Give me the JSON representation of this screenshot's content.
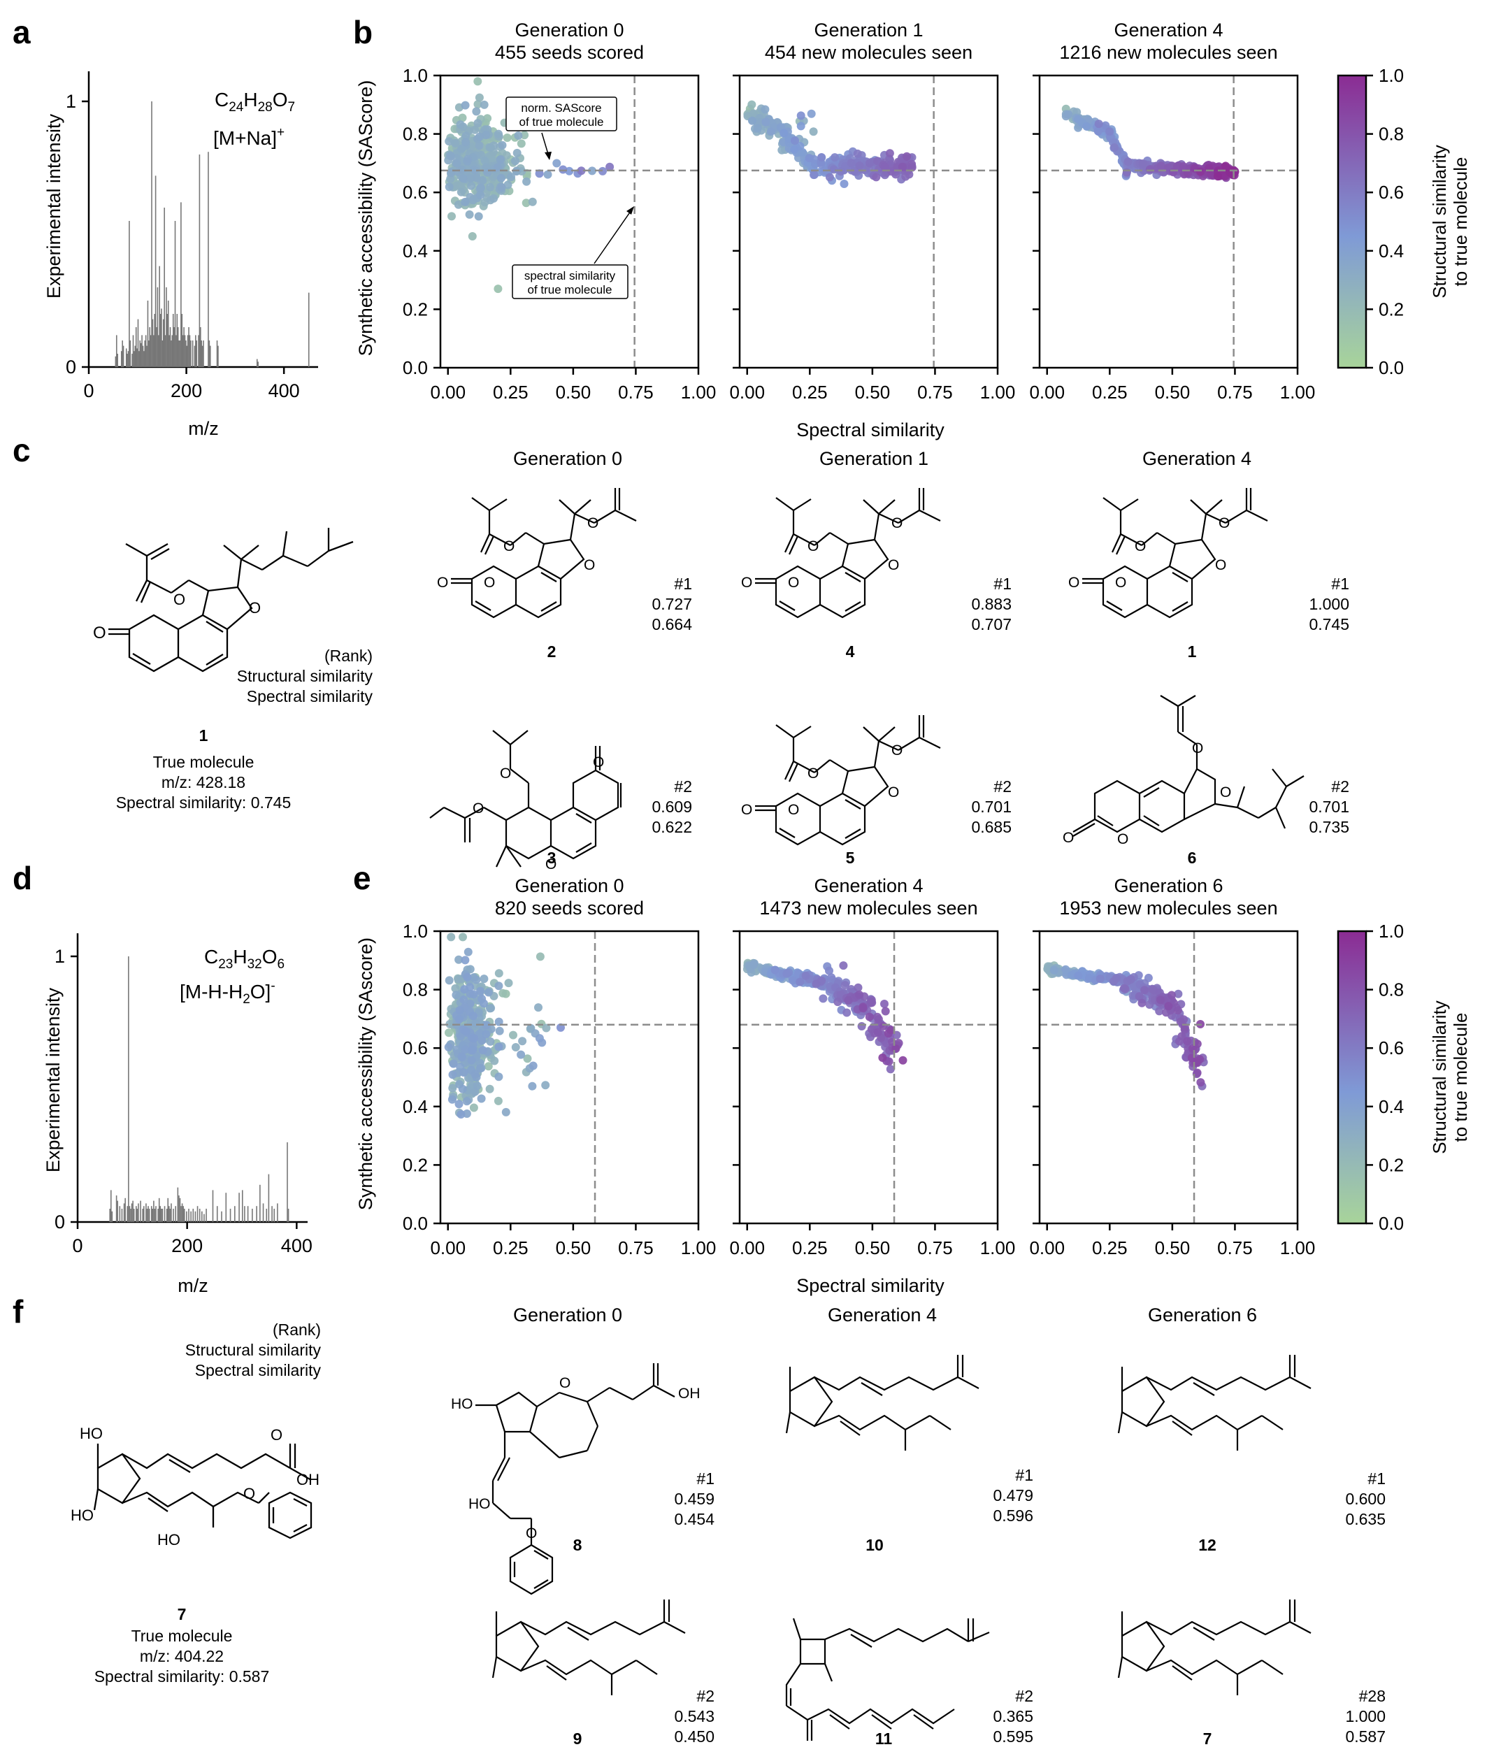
{
  "panel_letters": {
    "a": "a",
    "b": "b",
    "c": "c",
    "d": "d",
    "e": "e",
    "f": "f"
  },
  "colors": {
    "low": "#a8d49a",
    "mid": "#7f9ad6",
    "high": "#8b2c93",
    "dash": "#8c8c8c",
    "line": "#000000",
    "spectrum": "#777777"
  },
  "colorbar": {
    "label": "Structural similarity to true molecule",
    "label_line1": "Structural similarity",
    "label_line2": "to true molecule",
    "ticks": [
      "0.0",
      "0.2",
      "0.4",
      "0.6",
      "0.8",
      "1.0"
    ]
  },
  "chart_data": [
    {
      "id": "a",
      "type": "spectrum",
      "ylabel": "Experimental intensity",
      "xlabel": "m/z",
      "formula": "C24H28O7",
      "adduct": "[M+Na]+",
      "xlim": [
        0,
        470
      ],
      "ylim": [
        0,
        1.1
      ],
      "xticks": [
        "0",
        "200",
        "400"
      ],
      "yticks": [
        "0",
        "1"
      ],
      "peaks": [
        [
          55,
          0.04
        ],
        [
          57,
          0.12
        ],
        [
          59,
          0.05
        ],
        [
          67,
          0.06
        ],
        [
          69,
          0.1
        ],
        [
          71,
          0.08
        ],
        [
          77,
          0.07
        ],
        [
          79,
          0.05
        ],
        [
          81,
          0.06
        ],
        [
          83,
          0.55
        ],
        [
          85,
          0.1
        ],
        [
          89,
          0.05
        ],
        [
          91,
          0.12
        ],
        [
          93,
          0.06
        ],
        [
          95,
          0.08
        ],
        [
          97,
          0.15
        ],
        [
          99,
          0.07
        ],
        [
          101,
          0.18
        ],
        [
          103,
          0.06
        ],
        [
          105,
          0.1
        ],
        [
          107,
          0.09
        ],
        [
          109,
          0.12
        ],
        [
          111,
          0.08
        ],
        [
          113,
          0.06
        ],
        [
          115,
          0.1
        ],
        [
          117,
          0.12
        ],
        [
          119,
          0.08
        ],
        [
          121,
          0.25
        ],
        [
          123,
          0.1
        ],
        [
          125,
          0.15
        ],
        [
          127,
          0.12
        ],
        [
          129,
          1.0
        ],
        [
          131,
          0.18
        ],
        [
          133,
          0.12
        ],
        [
          135,
          0.2
        ],
        [
          137,
          0.72
        ],
        [
          139,
          0.15
        ],
        [
          141,
          0.3
        ],
        [
          143,
          0.12
        ],
        [
          145,
          0.38
        ],
        [
          147,
          0.2
        ],
        [
          149,
          0.22
        ],
        [
          151,
          0.1
        ],
        [
          153,
          0.18
        ],
        [
          155,
          0.6
        ],
        [
          157,
          0.12
        ],
        [
          159,
          0.3
        ],
        [
          161,
          0.2
        ],
        [
          163,
          0.25
        ],
        [
          165,
          0.12
        ],
        [
          167,
          0.15
        ],
        [
          169,
          0.1
        ],
        [
          171,
          0.12
        ],
        [
          173,
          0.2
        ],
        [
          175,
          0.15
        ],
        [
          177,
          0.55
        ],
        [
          179,
          0.12
        ],
        [
          181,
          0.2
        ],
        [
          183,
          0.15
        ],
        [
          185,
          0.1
        ],
        [
          187,
          0.1
        ],
        [
          189,
          0.62
        ],
        [
          191,
          0.2
        ],
        [
          193,
          0.12
        ],
        [
          195,
          0.15
        ],
        [
          197,
          0.12
        ],
        [
          199,
          0.1
        ],
        [
          201,
          0.08
        ],
        [
          203,
          0.12
        ],
        [
          205,
          0.15
        ],
        [
          207,
          0.12
        ],
        [
          209,
          0.1
        ],
        [
          213,
          0.1
        ],
        [
          217,
          0.08
        ],
        [
          219,
          0.12
        ],
        [
          221,
          0.1
        ],
        [
          225,
          0.12
        ],
        [
          227,
          0.8
        ],
        [
          229,
          0.15
        ],
        [
          231,
          0.1
        ],
        [
          233,
          0.08
        ],
        [
          235,
          0.1
        ],
        [
          245,
          0.81
        ],
        [
          247,
          0.1
        ],
        [
          249,
          0.08
        ],
        [
          263,
          0.1
        ],
        [
          265,
          0.08
        ],
        [
          345,
          0.03
        ],
        [
          347,
          0.02
        ],
        [
          451,
          0.28
        ]
      ]
    },
    {
      "id": "b",
      "type": "scatter",
      "ylabel": "Synthetic accessibility (SAScore)",
      "xlabel": "Spectral similarity",
      "xlim": [
        -0.03,
        1.0
      ],
      "ylim": [
        0,
        1.0
      ],
      "xticks": [
        "0.00",
        "0.25",
        "0.50",
        "0.75",
        "1.00"
      ],
      "yticks": [
        "0.0",
        "0.2",
        "0.4",
        "0.6",
        "0.8",
        "1.0"
      ],
      "vline": 0.745,
      "hline": 0.675,
      "annotations": {
        "sascore_box_line1": "norm. SAScore",
        "sascore_box_line2": "of true molecule",
        "spectral_box_line1": "spectral similarity",
        "spectral_box_line2": "of true molecule"
      },
      "subplots": [
        {
          "title1": "Generation 0",
          "title2": "455 seeds scored",
          "pattern": "cloud0b",
          "count": 380
        },
        {
          "title1": "Generation 1",
          "title2": "454 new molecules seen",
          "pattern": "curve1b",
          "count": 300
        },
        {
          "title1": "Generation 4",
          "title2": "1216 new molecules seen",
          "pattern": "curve4b",
          "count": 420
        }
      ]
    },
    {
      "id": "d",
      "type": "spectrum",
      "ylabel": "Experimental intensity",
      "xlabel": "m/z",
      "formula": "C23H32O6",
      "adduct": "[M-H-H2O]-",
      "xlim": [
        0,
        420
      ],
      "ylim": [
        0,
        1.1
      ],
      "xticks": [
        "0",
        "200",
        "400"
      ],
      "yticks": [
        "0",
        "1"
      ],
      "peaks": [
        [
          59,
          0.05
        ],
        [
          61,
          0.12
        ],
        [
          63,
          0.04
        ],
        [
          71,
          0.1
        ],
        [
          73,
          0.08
        ],
        [
          77,
          0.06
        ],
        [
          81,
          0.05
        ],
        [
          85,
          0.07
        ],
        [
          87,
          0.09
        ],
        [
          91,
          0.06
        ],
        [
          93,
          1.0
        ],
        [
          95,
          0.06
        ],
        [
          97,
          0.05
        ],
        [
          99,
          0.07
        ],
        [
          101,
          0.08
        ],
        [
          103,
          0.05
        ],
        [
          107,
          0.06
        ],
        [
          109,
          0.05
        ],
        [
          111,
          0.07
        ],
        [
          115,
          0.08
        ],
        [
          119,
          0.05
        ],
        [
          121,
          0.06
        ],
        [
          125,
          0.07
        ],
        [
          127,
          0.05
        ],
        [
          129,
          0.06
        ],
        [
          131,
          0.05
        ],
        [
          135,
          0.06
        ],
        [
          137,
          0.05
        ],
        [
          139,
          0.08
        ],
        [
          141,
          0.05
        ],
        [
          143,
          0.06
        ],
        [
          147,
          0.05
        ],
        [
          149,
          0.09
        ],
        [
          151,
          0.06
        ],
        [
          153,
          0.05
        ],
        [
          155,
          0.05
        ],
        [
          159,
          0.06
        ],
        [
          163,
          0.05
        ],
        [
          165,
          0.09
        ],
        [
          167,
          0.06
        ],
        [
          169,
          0.05
        ],
        [
          171,
          0.07
        ],
        [
          175,
          0.05
        ],
        [
          179,
          0.06
        ],
        [
          183,
          0.13
        ],
        [
          185,
          0.1
        ],
        [
          187,
          0.09
        ],
        [
          189,
          0.06
        ],
        [
          191,
          0.07
        ],
        [
          193,
          0.06
        ],
        [
          195,
          0.05
        ],
        [
          199,
          0.04
        ],
        [
          203,
          0.05
        ],
        [
          207,
          0.04
        ],
        [
          211,
          0.05
        ],
        [
          215,
          0.04
        ],
        [
          219,
          0.06
        ],
        [
          223,
          0.05
        ],
        [
          227,
          0.04
        ],
        [
          231,
          0.03
        ],
        [
          235,
          0.05
        ],
        [
          247,
          0.12
        ],
        [
          255,
          0.06
        ],
        [
          263,
          0.04
        ],
        [
          271,
          0.11
        ],
        [
          279,
          0.05
        ],
        [
          287,
          0.06
        ],
        [
          295,
          0.11
        ],
        [
          301,
          0.12
        ],
        [
          305,
          0.06
        ],
        [
          311,
          0.06
        ],
        [
          319,
          0.05
        ],
        [
          327,
          0.06
        ],
        [
          333,
          0.14
        ],
        [
          339,
          0.07
        ],
        [
          345,
          0.05
        ],
        [
          349,
          0.18
        ],
        [
          355,
          0.06
        ],
        [
          359,
          0.05
        ],
        [
          365,
          0.07
        ],
        [
          383,
          0.3
        ],
        [
          385,
          0.05
        ]
      ]
    },
    {
      "id": "e",
      "type": "scatter",
      "ylabel": "Synthetic accessibility (SAscore)",
      "xlabel": "Spectral similarity",
      "xlim": [
        -0.03,
        1.0
      ],
      "ylim": [
        0,
        1.0
      ],
      "xticks": [
        "0.00",
        "0.25",
        "0.50",
        "0.75",
        "1.00"
      ],
      "yticks": [
        "0.0",
        "0.2",
        "0.4",
        "0.6",
        "0.8",
        "1.0"
      ],
      "vline": 0.587,
      "hline": 0.68,
      "subplots": [
        {
          "title1": "Generation 0",
          "title2": "820 seeds scored",
          "pattern": "cloud0e",
          "count": 420
        },
        {
          "title1": "Generation 4",
          "title2": "1473 new molecules seen",
          "pattern": "curve4e",
          "count": 300
        },
        {
          "title1": "Generation 6",
          "title2": "1953 new molecules seen",
          "pattern": "curve6e",
          "count": 280
        }
      ]
    }
  ],
  "panel_a": {
    "formula_c": "C",
    "formula_c_n": "24",
    "formula_h": "H",
    "formula_h_n": "28",
    "formula_o": "O",
    "formula_o_n": "7",
    "adduct_main": "[M+Na]",
    "adduct_sup": "+"
  },
  "panel_d": {
    "formula_c": "C",
    "formula_c_n": "23",
    "formula_h": "H",
    "formula_h_n": "32",
    "formula_o": "O",
    "formula_o_n": "6",
    "adduct_main": "[M-H-H",
    "adduct_sub": "2",
    "adduct_end": "O]",
    "adduct_sup": "-"
  },
  "panel_c": {
    "legend": {
      "rank": "(Rank)",
      "structural": "Structural similarity",
      "spectral": "Spectral similarity"
    },
    "true_molecule": {
      "number": "1",
      "label": "True molecule",
      "mz": "m/z: 428.18",
      "spectral": "Spectral similarity: 0.745"
    },
    "generations": [
      "Generation 0",
      "Generation 1",
      "Generation 4"
    ],
    "candidates": [
      {
        "number": "2",
        "rank": "#1",
        "structural": "0.727",
        "spectral": "0.664"
      },
      {
        "number": "4",
        "rank": "#1",
        "structural": "0.883",
        "spectral": "0.707"
      },
      {
        "number": "1",
        "rank": "#1",
        "structural": "1.000",
        "spectral": "0.745"
      },
      {
        "number": "3",
        "rank": "#2",
        "structural": "0.609",
        "spectral": "0.622"
      },
      {
        "number": "5",
        "rank": "#2",
        "structural": "0.701",
        "spectral": "0.685"
      },
      {
        "number": "6",
        "rank": "#2",
        "structural": "0.701",
        "spectral": "0.735"
      }
    ]
  },
  "panel_f": {
    "legend": {
      "rank": "(Rank)",
      "structural": "Structural similarity",
      "spectral": "Spectral similarity"
    },
    "true_molecule": {
      "number": "7",
      "label": "True molecule",
      "mz": "m/z: 404.22",
      "spectral": "Spectral similarity: 0.587"
    },
    "generations": [
      "Generation 0",
      "Generation 4",
      "Generation 6"
    ],
    "candidates": [
      {
        "number": "8",
        "rank": "#1",
        "structural": "0.459",
        "spectral": "0.454"
      },
      {
        "number": "10",
        "rank": "#1",
        "structural": "0.479",
        "spectral": "0.596"
      },
      {
        "number": "12",
        "rank": "#1",
        "structural": "0.600",
        "spectral": "0.635"
      },
      {
        "number": "9",
        "rank": "#2",
        "structural": "0.543",
        "spectral": "0.450"
      },
      {
        "number": "11",
        "rank": "#2",
        "structural": "0.365",
        "spectral": "0.595"
      },
      {
        "number": "7",
        "rank": "#28",
        "structural": "1.000",
        "spectral": "0.587"
      }
    ]
  },
  "atom_labels": {
    "O": "O",
    "OH": "OH",
    "HO": "HO"
  }
}
